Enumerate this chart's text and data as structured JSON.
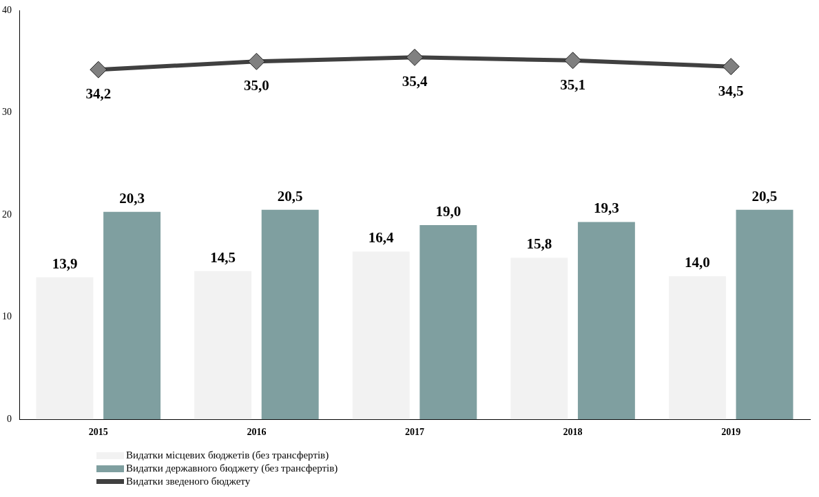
{
  "chart_data": {
    "type": "bar",
    "categories": [
      "2015",
      "2016",
      "2017",
      "2018",
      "2019"
    ],
    "series": [
      {
        "name": "Видатки місцевих бюджетів (без трансфертів)",
        "color": "#f2f2f2",
        "values": [
          13.9,
          14.5,
          16.4,
          15.8,
          14.0
        ],
        "value_labels": [
          "13,9",
          "14,5",
          "16,4",
          "15,8",
          "14,0"
        ]
      },
      {
        "name": "Видатки державного бюджету (без трансфертів)",
        "color": "#7f9fa0",
        "values": [
          20.3,
          20.5,
          19.0,
          19.3,
          20.5
        ],
        "value_labels": [
          "20,3",
          "20,5",
          "19,0",
          "19,3",
          "20,5"
        ]
      },
      {
        "name": "Видатки зведеного бюджету",
        "type": "line",
        "color": "#404040",
        "values": [
          34.2,
          35.0,
          35.4,
          35.1,
          34.5
        ],
        "value_labels": [
          "34,2",
          "35,0",
          "35,4",
          "35,1",
          "34,5"
        ]
      }
    ],
    "ylim": [
      0,
      40
    ],
    "yticks": [
      0,
      10,
      20,
      30,
      40
    ],
    "grid": false,
    "legend": "bottom left",
    "marker": "diamond"
  }
}
